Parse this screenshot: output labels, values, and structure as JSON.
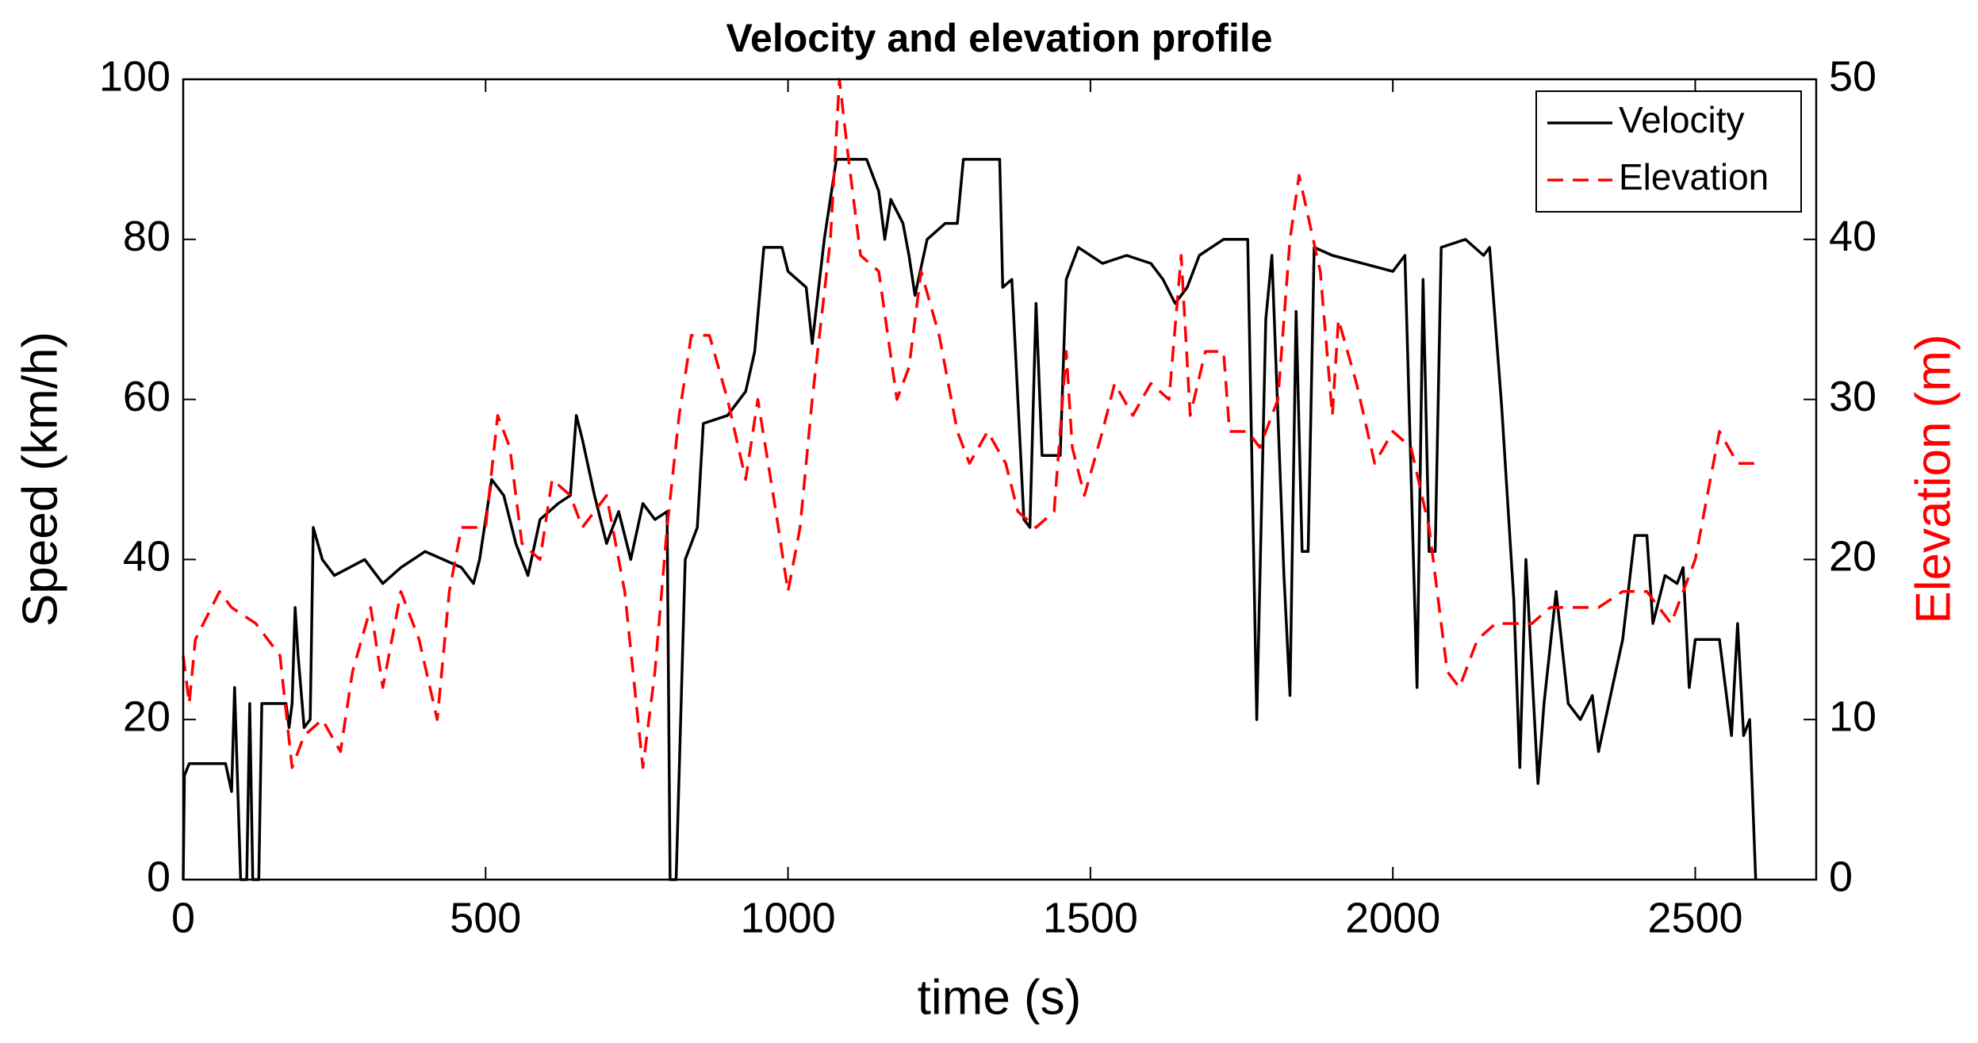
{
  "chart_data": {
    "type": "line",
    "title": "Velocity and elevation profile",
    "xlabel": "time (s)",
    "ylabel": "Speed  (km/h)",
    "y2label": "Elevation  (m)",
    "xlim": [
      0,
      2700
    ],
    "xticks": [
      0,
      500,
      1000,
      1500,
      2000,
      2500
    ],
    "ylim": [
      0,
      100
    ],
    "yticks": [
      0,
      20,
      40,
      60,
      80,
      100
    ],
    "y2lim": [
      0,
      50
    ],
    "y2ticks": [
      0,
      10,
      20,
      30,
      40,
      50
    ],
    "legend": "upper right",
    "series": [
      {
        "name": "Velocity",
        "color": "#000000",
        "dash": "solid",
        "axis": "y",
        "x": [
          0,
          2,
          10,
          70,
          80,
          85,
          95,
          105,
          110,
          115,
          125,
          130,
          170,
          175,
          180,
          185,
          190,
          200,
          210,
          215,
          230,
          250,
          300,
          330,
          360,
          400,
          430,
          460,
          480,
          490,
          500,
          510,
          530,
          550,
          570,
          590,
          620,
          640,
          650,
          660,
          680,
          700,
          720,
          740,
          760,
          780,
          800,
          805,
          815,
          830,
          850,
          860,
          900,
          930,
          945,
          960,
          990,
          1000,
          1030,
          1040,
          1060,
          1080,
          1130,
          1150,
          1160,
          1170,
          1190,
          1200,
          1210,
          1230,
          1260,
          1280,
          1290,
          1350,
          1355,
          1370,
          1390,
          1400,
          1410,
          1420,
          1450,
          1460,
          1480,
          1520,
          1560,
          1600,
          1620,
          1640,
          1660,
          1680,
          1720,
          1760,
          1775,
          1790,
          1800,
          1820,
          1830,
          1840,
          1850,
          1860,
          1870,
          1900,
          1950,
          2000,
          2020,
          2040,
          2050,
          2060,
          2070,
          2080,
          2120,
          2150,
          2160,
          2180,
          2200,
          2210,
          2220,
          2240,
          2250,
          2270,
          2290,
          2310,
          2330,
          2340,
          2360,
          2380,
          2400,
          2420,
          2430,
          2450,
          2470,
          2480,
          2490,
          2500,
          2540,
          2560,
          2570,
          2580,
          2590,
          2600
        ],
        "values": [
          0,
          13,
          14.5,
          14.5,
          11,
          24,
          0,
          0,
          22,
          0,
          0,
          22,
          22,
          19,
          22,
          34,
          28,
          19,
          20,
          44,
          40,
          38,
          40,
          37,
          39,
          41,
          40,
          39,
          37,
          40,
          45,
          50,
          48,
          42,
          38,
          45,
          47,
          48,
          58,
          55,
          48,
          42,
          46,
          40,
          47,
          45,
          46,
          0,
          0,
          40,
          44,
          57,
          58,
          61,
          66,
          79,
          79,
          76,
          74,
          67,
          80,
          90,
          90,
          86,
          80,
          85,
          82,
          78,
          73,
          80,
          82,
          82,
          90,
          90,
          74,
          75,
          45,
          44,
          72,
          53,
          53,
          75,
          79,
          77,
          78,
          77,
          75,
          72,
          74,
          78,
          80,
          80,
          20,
          70,
          78,
          38,
          23,
          71,
          41,
          41,
          79,
          78,
          77,
          76,
          78,
          24,
          75,
          41,
          41,
          79,
          80,
          78,
          79,
          59,
          35,
          14,
          40,
          12,
          22,
          36,
          22,
          20,
          23,
          16,
          23,
          30,
          43,
          43,
          32,
          38,
          37,
          39,
          24,
          30,
          30,
          18,
          32,
          18,
          20,
          0
        ]
      },
      {
        "name": "Elevation",
        "color": "#ff0000",
        "dash": "dashed",
        "axis": "y2",
        "x": [
          0,
          10,
          20,
          60,
          80,
          120,
          160,
          180,
          200,
          230,
          260,
          280,
          310,
          330,
          360,
          390,
          420,
          440,
          460,
          500,
          520,
          540,
          560,
          590,
          610,
          640,
          660,
          700,
          730,
          760,
          780,
          800,
          820,
          840,
          870,
          900,
          930,
          950,
          980,
          1000,
          1020,
          1040,
          1070,
          1085,
          1100,
          1120,
          1150,
          1180,
          1200,
          1220,
          1250,
          1280,
          1300,
          1330,
          1360,
          1380,
          1410,
          1440,
          1460,
          1470,
          1490,
          1520,
          1540,
          1570,
          1600,
          1630,
          1650,
          1665,
          1690,
          1720,
          1730,
          1760,
          1780,
          1810,
          1830,
          1845,
          1880,
          1900,
          1910,
          1940,
          1970,
          2000,
          2030,
          2060,
          2090,
          2110,
          2140,
          2170,
          2200,
          2230,
          2260,
          2300,
          2340,
          2380,
          2420,
          2460,
          2500,
          2520,
          2540,
          2570,
          2600
        ],
        "values": [
          14,
          11,
          15,
          18,
          17,
          16,
          14,
          7,
          9,
          10,
          8,
          13,
          17,
          12,
          18,
          15,
          10,
          18,
          22,
          22,
          29,
          27,
          21,
          20,
          25,
          24,
          22,
          24,
          18,
          7,
          13,
          22,
          29,
          34,
          34,
          30,
          25,
          30,
          23,
          18,
          22,
          30,
          40,
          50,
          45,
          39,
          38,
          30,
          32,
          38,
          34,
          28,
          26,
          28,
          26,
          23,
          22,
          23,
          33,
          27,
          24,
          28,
          31,
          29,
          31,
          30,
          39,
          29,
          33,
          33,
          28,
          28,
          27,
          30,
          40,
          44,
          38,
          29,
          35,
          31,
          26,
          28,
          27,
          22,
          13,
          12,
          15,
          16,
          16,
          16,
          17,
          17,
          17,
          18,
          18,
          16,
          20,
          24,
          28,
          26,
          26
        ]
      }
    ]
  }
}
